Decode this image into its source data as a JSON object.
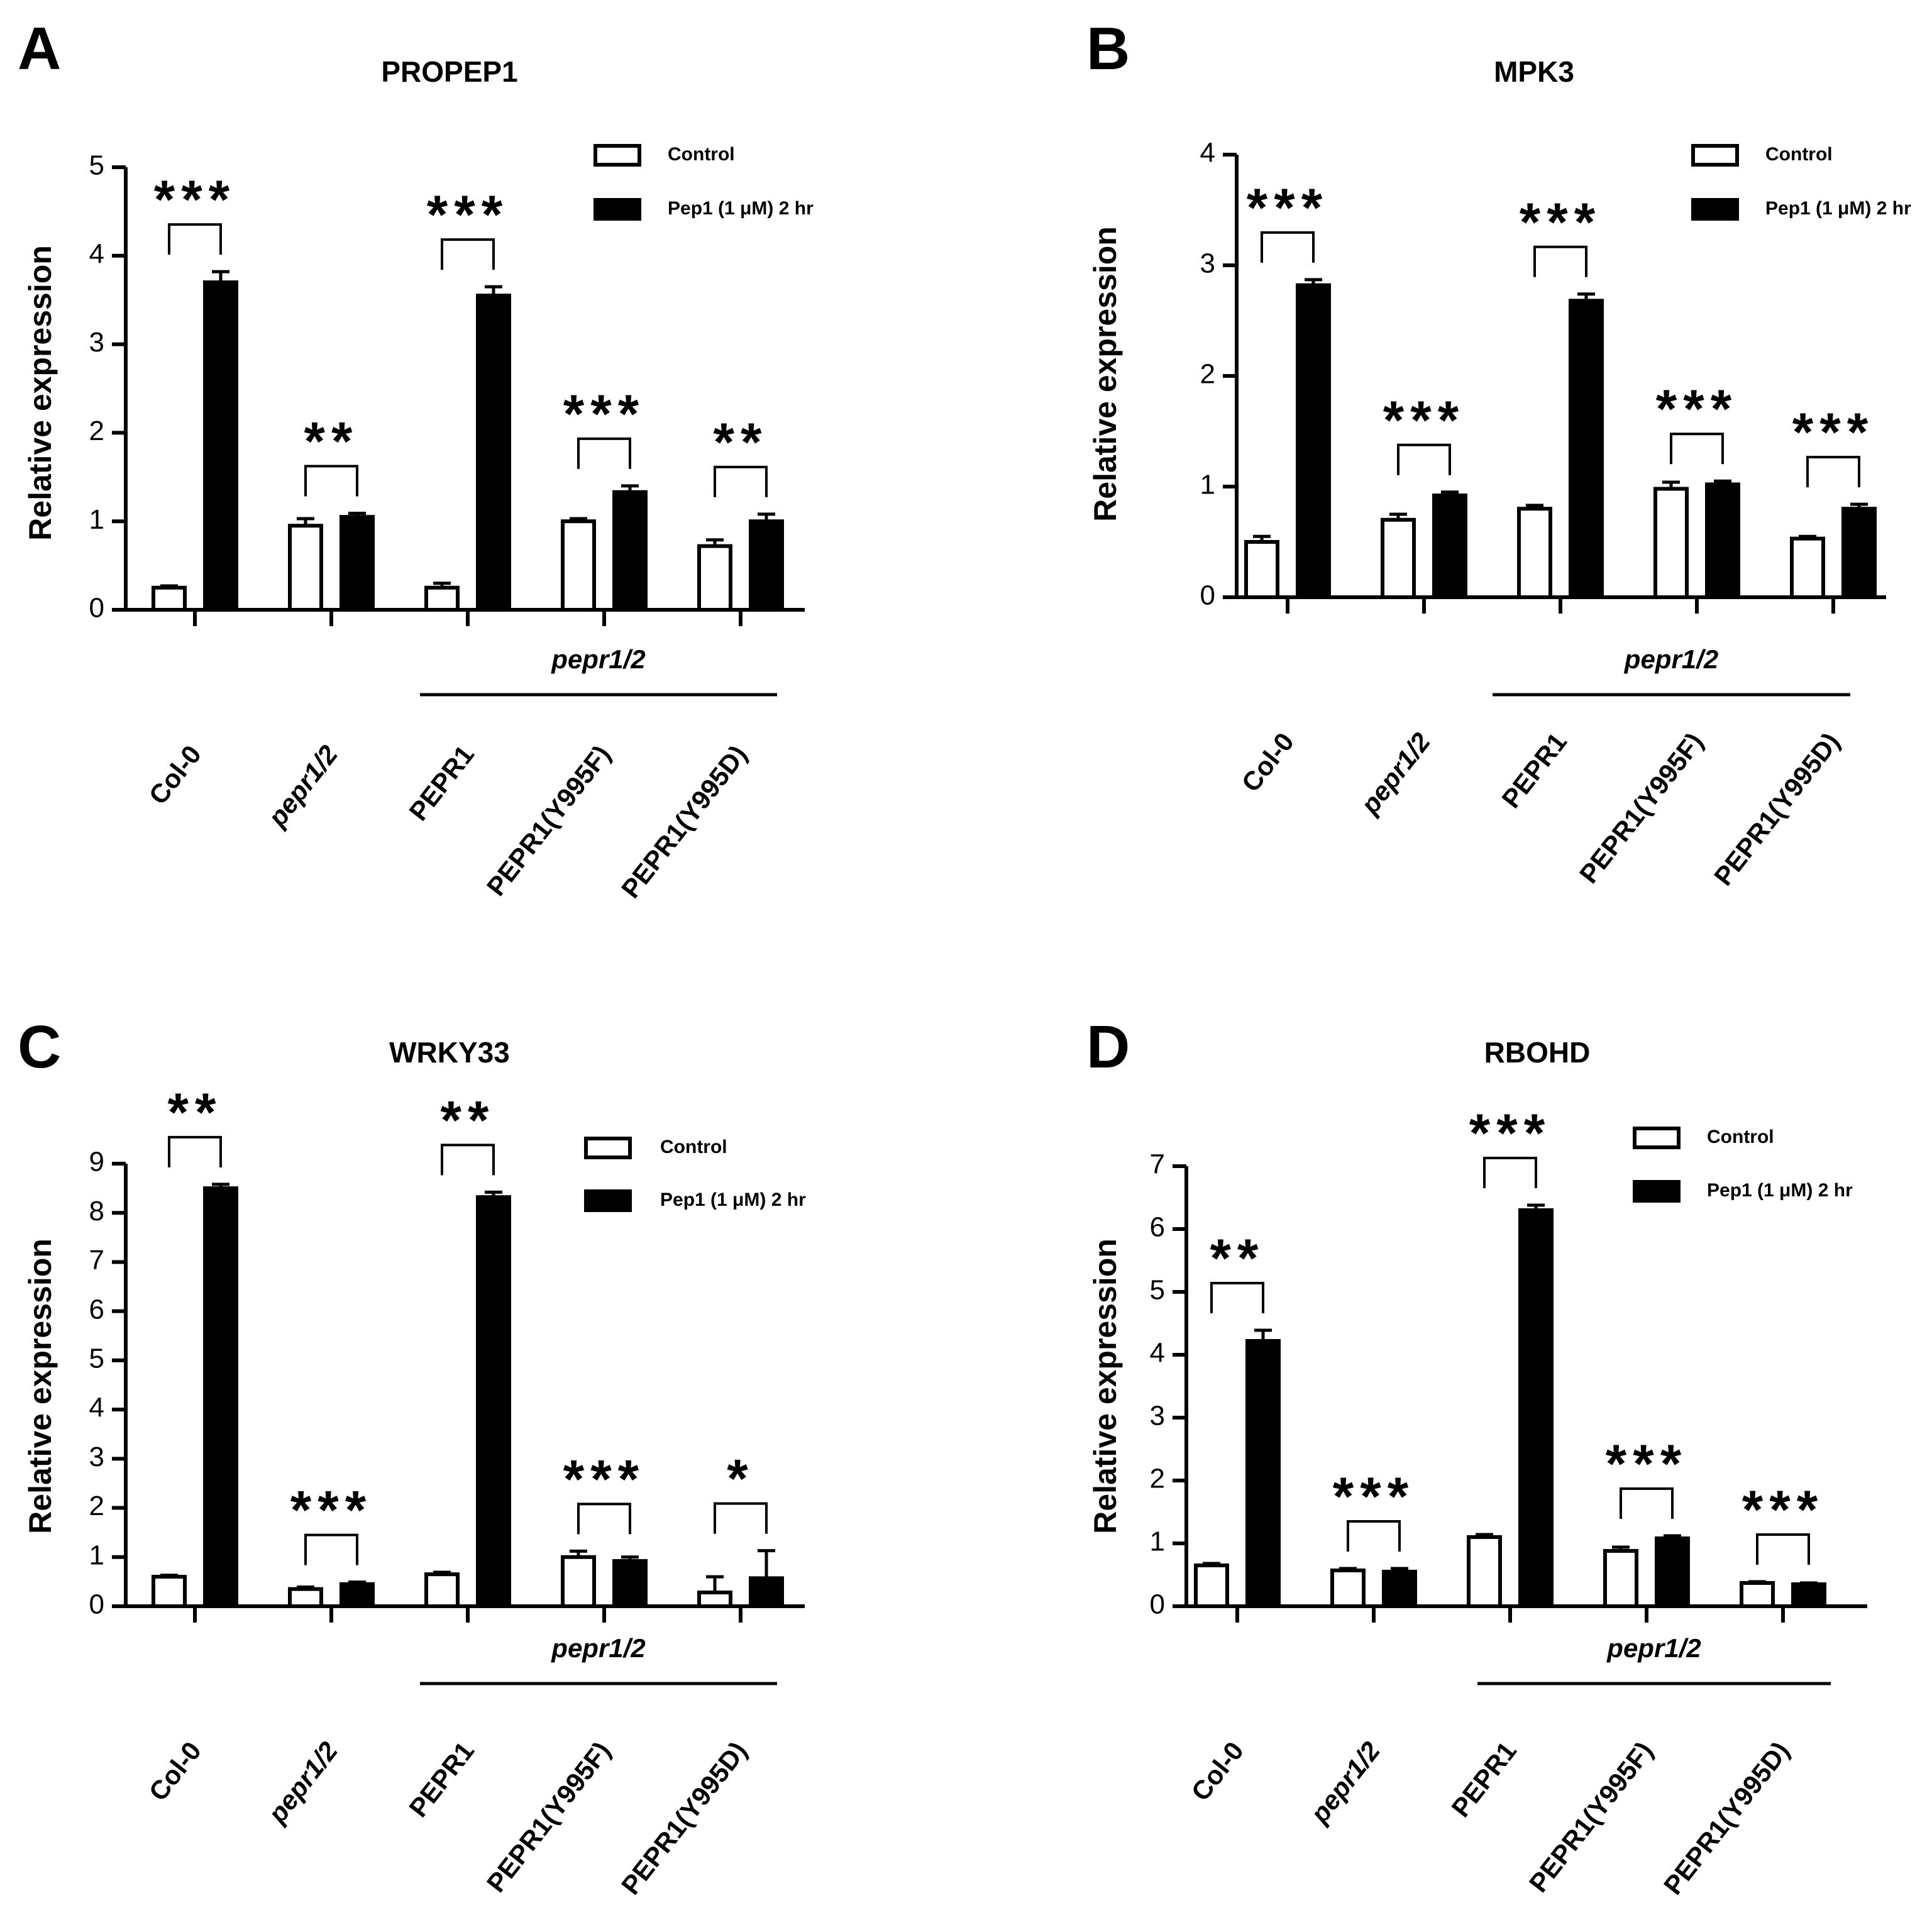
{
  "legend_labels": {
    "control": "Control",
    "treated": "Pep1 (1 μM) 2 hr"
  },
  "colors": {
    "control_fill": "#ffffff",
    "treated_fill": "#000000",
    "stroke": "#000000",
    "background": "#ffffff"
  },
  "chart_data": [
    {
      "panel": "A",
      "type": "bar",
      "title": "PROPEP1",
      "ylabel": "Relative expression",
      "xlabel": "",
      "ylim": [
        0,
        5
      ],
      "yticks": [
        "0",
        "1",
        "2",
        "3",
        "4",
        "5"
      ],
      "categories": [
        "Col-0",
        "pepr1/2",
        "PEPR1",
        "PEPR1(Y995F)",
        "PEPR1(Y995D)"
      ],
      "italic_categories": [
        "pepr1/2"
      ],
      "group_label": "pepr1/2",
      "group_covers": [
        "PEPR1",
        "PEPR1(Y995F)",
        "PEPR1(Y995D)"
      ],
      "legend": [
        "Control",
        "Pep1 (1 μM) 2 hr"
      ],
      "legend_position": "top-right",
      "series": [
        {
          "name": "Control",
          "values": [
            0.25,
            0.95,
            0.25,
            1.0,
            0.72
          ],
          "errors": [
            0.02,
            0.08,
            0.05,
            0.03,
            0.07
          ]
        },
        {
          "name": "Pep1 (1 μM) 2 hr",
          "values": [
            3.7,
            1.05,
            3.55,
            1.33,
            1.0
          ],
          "errors": [
            0.12,
            0.04,
            0.1,
            0.07,
            0.08
          ]
        }
      ],
      "significance": [
        "***",
        "**",
        "***",
        "***",
        "**"
      ]
    },
    {
      "panel": "B",
      "type": "bar",
      "title": "MPK3",
      "ylabel": "Relative expression",
      "xlabel": "",
      "ylim": [
        0,
        4
      ],
      "yticks": [
        "0",
        "1",
        "2",
        "3",
        "4"
      ],
      "categories": [
        "Col-0",
        "pepr1/2",
        "PEPR1",
        "PEPR1(Y995F)",
        "PEPR1(Y995D)"
      ],
      "italic_categories": [
        "pepr1/2"
      ],
      "group_label": "pepr1/2",
      "group_covers": [
        "PEPR1",
        "PEPR1(Y995F)",
        "PEPR1(Y995D)"
      ],
      "legend": [
        "Control",
        "Pep1 (1 μM) 2 hr"
      ],
      "legend_position": "top-right",
      "series": [
        {
          "name": "Control",
          "values": [
            0.5,
            0.7,
            0.8,
            0.98,
            0.53
          ],
          "errors": [
            0.05,
            0.05,
            0.03,
            0.06,
            0.02
          ]
        },
        {
          "name": "Pep1 (1 μM) 2 hr",
          "values": [
            2.82,
            0.92,
            2.68,
            1.02,
            0.8
          ],
          "errors": [
            0.05,
            0.03,
            0.06,
            0.03,
            0.04
          ]
        }
      ],
      "significance": [
        "***",
        "***",
        "***",
        "***",
        "***"
      ]
    },
    {
      "panel": "C",
      "type": "bar",
      "title": "WRKY33",
      "ylabel": "Relative expression",
      "xlabel": "",
      "ylim": [
        0,
        9
      ],
      "yticks": [
        "0",
        "1",
        "2",
        "3",
        "4",
        "5",
        "6",
        "7",
        "8",
        "9"
      ],
      "categories": [
        "Col-0",
        "pepr1/2",
        "PEPR1",
        "PEPR1(Y995F)",
        "PEPR1(Y995D)"
      ],
      "italic_categories": [
        "pepr1/2"
      ],
      "group_label": "pepr1/2",
      "group_covers": [
        "PEPR1",
        "PEPR1(Y995F)",
        "PEPR1(Y995D)"
      ],
      "legend": [
        "Control",
        "Pep1 (1 μM) 2 hr"
      ],
      "legend_position": "top-right",
      "series": [
        {
          "name": "Control",
          "values": [
            0.6,
            0.35,
            0.65,
            1.0,
            0.28
          ],
          "errors": [
            0.03,
            0.04,
            0.04,
            0.12,
            0.32
          ]
        },
        {
          "name": "Pep1 (1 μM) 2 hr",
          "values": [
            8.5,
            0.45,
            8.32,
            0.92,
            0.57
          ],
          "errors": [
            0.08,
            0.04,
            0.1,
            0.08,
            0.56
          ]
        }
      ],
      "significance": [
        "**",
        "***",
        "**",
        "***",
        "*"
      ]
    },
    {
      "panel": "D",
      "type": "bar",
      "title": "RBOHD",
      "ylabel": "Relative expression",
      "xlabel": "",
      "ylim": [
        0,
        7
      ],
      "yticks": [
        "0",
        "1",
        "2",
        "3",
        "4",
        "5",
        "6",
        "7"
      ],
      "categories": [
        "Col-0",
        "pepr1/2",
        "PEPR1",
        "PEPR1(Y995F)",
        "PEPR1(Y995D)"
      ],
      "italic_categories": [
        "pepr1/2"
      ],
      "group_label": "pepr1/2",
      "group_covers": [
        "PEPR1",
        "PEPR1(Y995F)",
        "PEPR1(Y995D)"
      ],
      "legend": [
        "Control",
        "Pep1 (1 μM) 2 hr"
      ],
      "legend_position": "top-right",
      "series": [
        {
          "name": "Control",
          "values": [
            0.65,
            0.57,
            1.1,
            0.88,
            0.37
          ],
          "errors": [
            0.03,
            0.03,
            0.04,
            0.06,
            0.02
          ]
        },
        {
          "name": "Pep1 (1 μM) 2 hr",
          "values": [
            4.22,
            0.55,
            6.3,
            1.08,
            0.35
          ],
          "errors": [
            0.17,
            0.05,
            0.08,
            0.04,
            0.02
          ]
        }
      ],
      "significance": [
        "**",
        "***",
        "***",
        "***",
        "***"
      ]
    }
  ]
}
